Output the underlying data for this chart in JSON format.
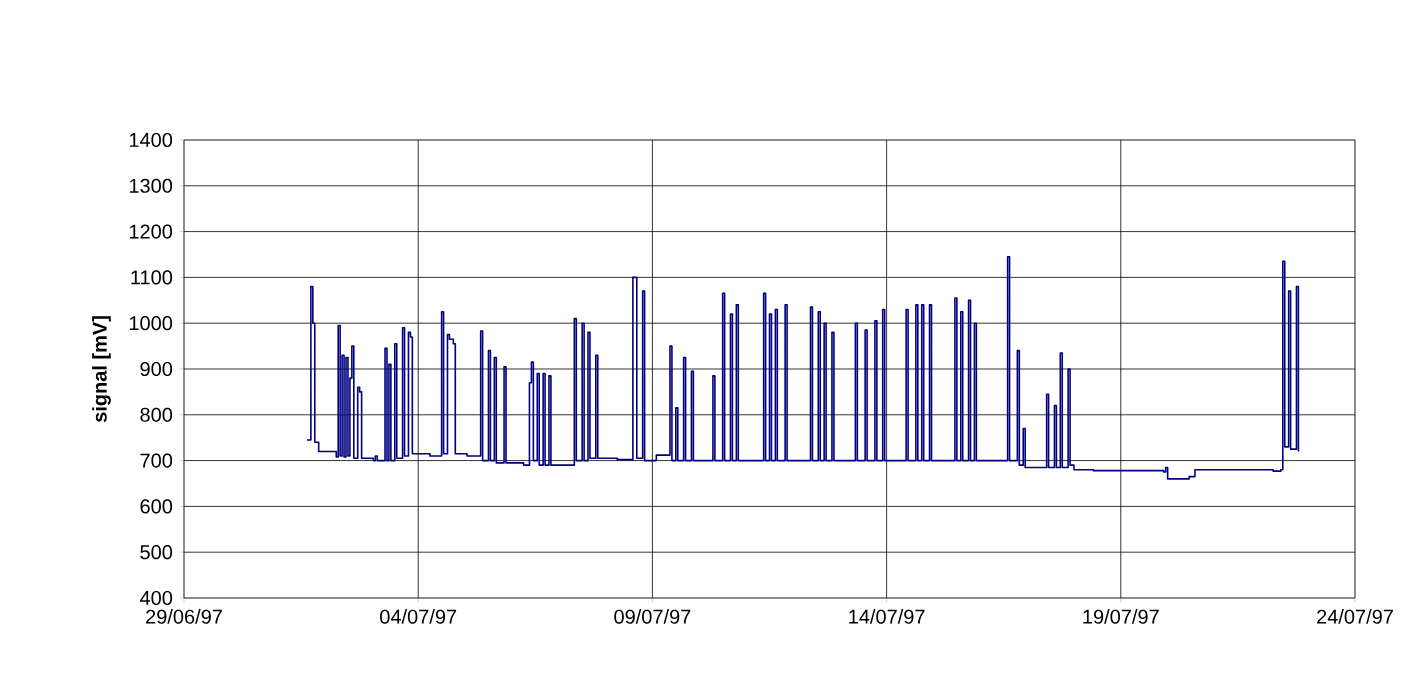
{
  "chart_data": {
    "type": "step",
    "ylabel": "signal [mV]",
    "xlim": [
      "1997-06-29",
      "1997-07-24"
    ],
    "xticks": [
      {
        "value": "1997-06-29",
        "label": "29/06/97"
      },
      {
        "value": "1997-07-04",
        "label": "04/07/97"
      },
      {
        "value": "1997-07-09",
        "label": "09/07/97"
      },
      {
        "value": "1997-07-14",
        "label": "14/07/97"
      },
      {
        "value": "1997-07-19",
        "label": "19/07/97"
      },
      {
        "value": "1997-07-24",
        "label": "24/07/97"
      }
    ],
    "ylim": [
      400,
      1400
    ],
    "yticks": [
      400,
      500,
      600,
      700,
      800,
      900,
      1000,
      1100,
      1200,
      1300,
      1400
    ],
    "grid": true,
    "marker": "none",
    "line_style": "solid",
    "x": [
      "1997-07-01T15:00",
      "1997-07-01T17:00",
      "1997-07-01T18:00",
      "1997-07-01T19:00",
      "1997-07-01T21:00",
      "1997-07-02T06:00",
      "1997-07-02T07:00",
      "1997-07-02T08:00",
      "1997-07-02T09:00",
      "1997-07-02T10:00",
      "1997-07-02T11:00",
      "1997-07-02T12:00",
      "1997-07-02T13:00",
      "1997-07-02T14:00",
      "1997-07-02T15:00",
      "1997-07-02T17:00",
      "1997-07-02T18:00",
      "1997-07-02T19:00",
      "1997-07-03T01:00",
      "1997-07-03T02:00",
      "1997-07-03T03:00",
      "1997-07-03T07:00",
      "1997-07-03T08:00",
      "1997-07-03T09:00",
      "1997-07-03T10:00",
      "1997-07-03T12:00",
      "1997-07-03T13:00",
      "1997-07-03T16:00",
      "1997-07-03T17:00",
      "1997-07-03T19:00",
      "1997-07-03T20:00",
      "1997-07-03T21:00",
      "1997-07-04T02:00",
      "1997-07-04T06:00",
      "1997-07-04T12:00",
      "1997-07-04T13:00",
      "1997-07-04T15:00",
      "1997-07-04T16:00",
      "1997-07-04T18:00",
      "1997-07-04T19:00",
      "1997-07-05T01:00",
      "1997-07-05T08:00",
      "1997-07-05T09:00",
      "1997-07-05T12:00",
      "1997-07-05T13:00",
      "1997-07-05T15:00",
      "1997-07-05T16:00",
      "1997-07-05T20:00",
      "1997-07-05T21:00",
      "1997-07-06T05:00",
      "1997-07-06T06:00",
      "1997-07-06T09:00",
      "1997-07-06T10:00",
      "1997-07-06T11:00",
      "1997-07-06T13:00",
      "1997-07-06T14:00",
      "1997-07-06T16:00",
      "1997-07-06T17:00",
      "1997-07-06T19:00",
      "1997-07-06T20:00",
      "1997-07-07T01:00",
      "1997-07-07T08:00",
      "1997-07-07T09:00",
      "1997-07-07T12:00",
      "1997-07-07T13:00",
      "1997-07-07T15:00",
      "1997-07-07T16:00",
      "1997-07-07T19:00",
      "1997-07-07T20:00",
      "1997-07-08T06:00",
      "1997-07-08T14:00",
      "1997-07-08T16:00",
      "1997-07-08T19:00",
      "1997-07-08T20:00",
      "1997-07-09T02:00",
      "1997-07-09T09:00",
      "1997-07-09T10:00",
      "1997-07-09T12:00",
      "1997-07-09T13:00",
      "1997-07-09T16:00",
      "1997-07-09T17:00",
      "1997-07-09T20:00",
      "1997-07-09T21:00",
      "1997-07-10T07:00",
      "1997-07-10T08:00",
      "1997-07-10T12:00",
      "1997-07-10T13:00",
      "1997-07-10T16:00",
      "1997-07-10T17:00",
      "1997-07-10T19:00",
      "1997-07-10T20:00",
      "1997-07-11T09:00",
      "1997-07-11T10:00",
      "1997-07-11T12:00",
      "1997-07-11T13:00",
      "1997-07-11T15:00",
      "1997-07-11T16:00",
      "1997-07-11T20:00",
      "1997-07-11T21:00",
      "1997-07-12T09:00",
      "1997-07-12T10:00",
      "1997-07-12T13:00",
      "1997-07-12T14:00",
      "1997-07-12T16:00",
      "1997-07-12T17:00",
      "1997-07-12T20:00",
      "1997-07-12T21:00",
      "1997-07-13T08:00",
      "1997-07-13T09:00",
      "1997-07-13T13:00",
      "1997-07-13T14:00",
      "1997-07-13T18:00",
      "1997-07-13T19:00",
      "1997-07-13T22:00",
      "1997-07-13T23:00",
      "1997-07-14T10:00",
      "1997-07-14T11:00",
      "1997-07-14T15:00",
      "1997-07-14T16:00",
      "1997-07-14T18:00",
      "1997-07-14T19:00",
      "1997-07-14T22:00",
      "1997-07-14T23:00",
      "1997-07-15T11:00",
      "1997-07-15T12:00",
      "1997-07-15T14:00",
      "1997-07-15T15:00",
      "1997-07-15T18:00",
      "1997-07-15T19:00",
      "1997-07-15T21:00",
      "1997-07-15T22:00",
      "1997-07-16T14:00",
      "1997-07-16T15:00",
      "1997-07-16T19:00",
      "1997-07-16T20:00",
      "1997-07-16T22:00",
      "1997-07-16T23:00",
      "1997-07-17T10:00",
      "1997-07-17T11:00",
      "1997-07-17T14:00",
      "1997-07-17T15:00",
      "1997-07-17T17:00",
      "1997-07-17T18:00",
      "1997-07-17T21:00",
      "1997-07-17T22:00",
      "1997-07-18T00:00",
      "1997-07-18T10:00",
      "1997-07-19T22:00",
      "1997-07-19T23:00",
      "1997-07-20T00:00",
      "1997-07-20T11:00",
      "1997-07-20T14:00",
      "1997-07-21T21:00",
      "1997-07-22T06:00",
      "1997-07-22T10:00",
      "1997-07-22T11:00",
      "1997-07-22T12:00",
      "1997-07-22T14:00",
      "1997-07-22T15:00",
      "1997-07-22T18:00",
      "1997-07-22T19:00"
    ],
    "series": [
      {
        "color": "#000080",
        "values": [
          745,
          1080,
          1000,
          740,
          720,
          708,
          995,
          710,
          930,
          708,
          925,
          710,
          880,
          950,
          705,
          860,
          850,
          705,
          700,
          710,
          700,
          945,
          700,
          910,
          700,
          955,
          705,
          990,
          710,
          980,
          970,
          715,
          715,
          710,
          1025,
          715,
          975,
          965,
          955,
          715,
          710,
          983,
          700,
          940,
          700,
          925,
          695,
          905,
          695,
          695,
          690,
          870,
          915,
          700,
          890,
          690,
          890,
          690,
          885,
          690,
          690,
          1010,
          700,
          1000,
          700,
          980,
          705,
          930,
          705,
          702,
          1100,
          705,
          1070,
          700,
          712,
          950,
          700,
          815,
          700,
          925,
          700,
          895,
          700,
          885,
          700,
          1065,
          700,
          1020,
          700,
          1040,
          700,
          1065,
          700,
          1020,
          700,
          1030,
          700,
          1040,
          700,
          1035,
          700,
          1025,
          700,
          1000,
          700,
          980,
          700,
          1000,
          700,
          985,
          700,
          1005,
          700,
          1030,
          700,
          1030,
          700,
          1040,
          700,
          1040,
          700,
          1040,
          700,
          1055,
          700,
          1025,
          700,
          1050,
          700,
          1000,
          700,
          1145,
          700,
          940,
          690,
          770,
          685,
          845,
          685,
          820,
          685,
          935,
          685,
          900,
          690,
          680,
          678,
          675,
          685,
          660,
          665,
          680,
          680,
          677,
          680,
          1135,
          730,
          1070,
          725,
          1080,
          720
        ]
      }
    ]
  }
}
